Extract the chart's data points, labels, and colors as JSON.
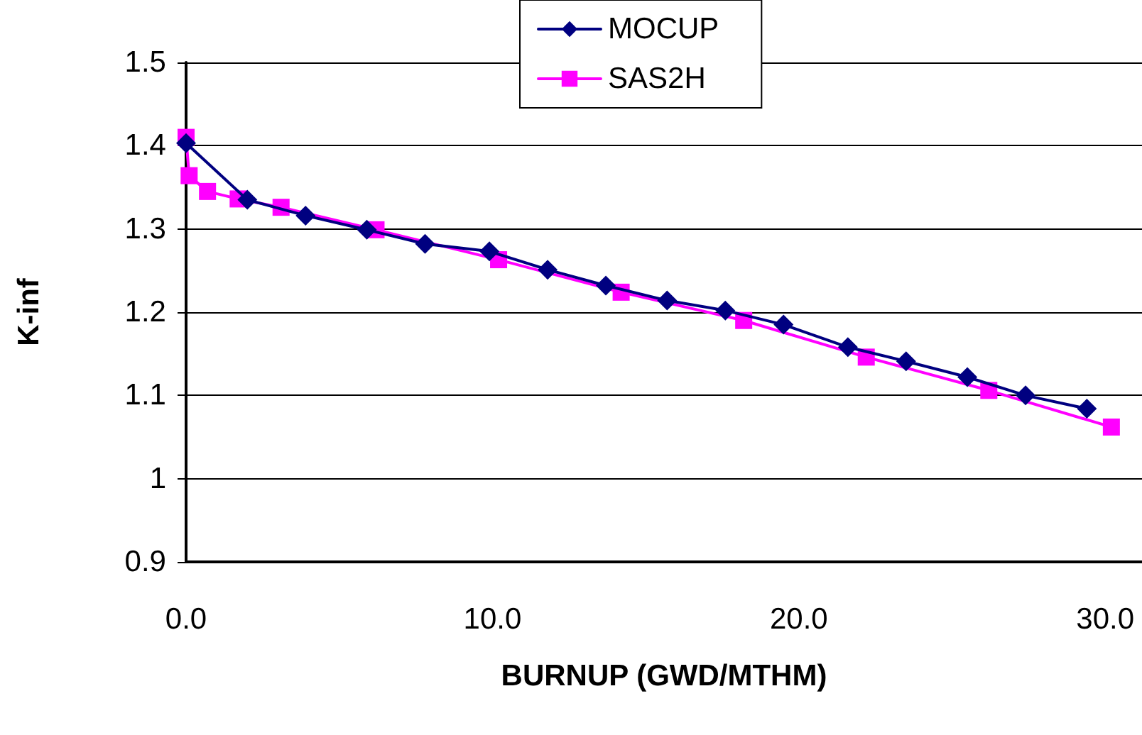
{
  "chart_data": {
    "type": "line",
    "xlabel": "BURNUP (GWD/MTHM)",
    "ylabel": "K-inf",
    "xlim": [
      0,
      31.2
    ],
    "xticks": [
      {
        "value": 0,
        "label": "0.0"
      },
      {
        "value": 10,
        "label": "10.0"
      },
      {
        "value": 20,
        "label": "20.0"
      },
      {
        "value": 30,
        "label": "30.0"
      }
    ],
    "ylim": [
      0.9,
      1.5
    ],
    "yticks": [
      0.9,
      1,
      1.1,
      1.2,
      1.3,
      1.4,
      1.5
    ],
    "grid": "y",
    "legend": "top",
    "series": [
      {
        "name": "MOCUP",
        "color": "#000080",
        "marker": "diamond",
        "x": [
          0,
          2.0,
          3.9,
          5.9,
          7.8,
          9.9,
          11.8,
          13.7,
          15.7,
          17.6,
          19.5,
          21.6,
          23.5,
          25.5,
          27.4,
          29.4
        ],
        "values": [
          1.403,
          1.335,
          1.316,
          1.299,
          1.282,
          1.273,
          1.251,
          1.232,
          1.214,
          1.202,
          1.185,
          1.158,
          1.141,
          1.122,
          1.1,
          1.084
        ]
      },
      {
        "name": "SAS2H",
        "color": "#ff00ff",
        "marker": "square",
        "x": [
          0,
          0.1,
          0.7,
          1.7,
          3.1,
          6.2,
          10.2,
          14.2,
          18.2,
          22.2,
          26.2,
          30.2
        ],
        "values": [
          1.41,
          1.364,
          1.345,
          1.336,
          1.326,
          1.299,
          1.263,
          1.224,
          1.19,
          1.146,
          1.106,
          1.062
        ]
      }
    ]
  }
}
